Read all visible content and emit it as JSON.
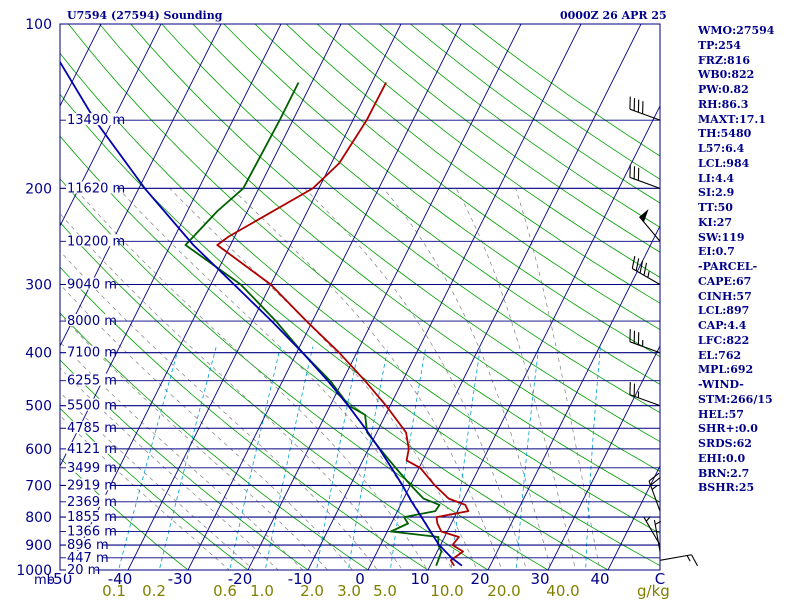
{
  "header": {
    "title": "U7594 (27594) Sounding",
    "time": "0000Z 26 APR 25"
  },
  "stats": [
    "WMO:27594",
    "TP:254",
    "FRZ:816",
    "WB0:822",
    "PW:0.82",
    "RH:86.3",
    "MAXT:17.1",
    "TH:5480",
    "L57:6.4",
    "LCL:984",
    "LI:4.4",
    "SI:2.9",
    "TT:50",
    "KI:27",
    "SW:119",
    "EI:0.7",
    "-PARCEL-",
    "CAPE:67",
    "CINH:57",
    "LCL:897",
    "CAP:4.4",
    "LFC:822",
    "EL:762",
    "MPL:692",
    "-WIND-",
    "STM:266/15",
    "HEL:57",
    "SHR+:0.0",
    "SRDS:62",
    "EHI:0.0",
    "BRN:2.7",
    "BSHR:25"
  ],
  "chart_data": {
    "type": "line",
    "diagram": "skew-T log-P",
    "xlabel": "",
    "ylabel": "mb",
    "pressure_range": [
      1000,
      100
    ],
    "temperature_range": [
      -50,
      50
    ],
    "pressure_ticks": [
      "100",
      "200",
      "300",
      "400",
      "500",
      "600",
      "700",
      "800",
      "900",
      "1000"
    ],
    "pressure_tick_values": [
      100,
      200,
      300,
      400,
      500,
      600,
      700,
      800,
      900,
      1000
    ],
    "temperature_ticks": [
      "-50",
      "-40",
      "-30",
      "-20",
      "-10",
      "0",
      "10",
      "20",
      "30",
      "40",
      "C"
    ],
    "temperature_tick_values": [
      -50,
      -40,
      -30,
      -20,
      -10,
      0,
      10,
      20,
      30,
      40
    ],
    "mixing_ratio_labels": [
      "0.1",
      "0.2",
      "0.6",
      "1.0",
      "2.0",
      "3.0",
      "5.0",
      "10.0",
      "20.0",
      "40.0",
      "g/kg"
    ],
    "mixing_ratio_values": [
      0.1,
      0.2,
      0.6,
      1.0,
      2.0,
      3.0,
      5.0,
      10.0,
      20.0,
      40.0
    ],
    "height_labels": [
      {
        "p": 150,
        "text": "13490 m"
      },
      {
        "p": 200,
        "text": "11620 m"
      },
      {
        "p": 250,
        "text": "10200 m"
      },
      {
        "p": 300,
        "text": "9040 m"
      },
      {
        "p": 350,
        "text": "8000 m"
      },
      {
        "p": 400,
        "text": "7100 m"
      },
      {
        "p": 450,
        "text": "6255 m"
      },
      {
        "p": 500,
        "text": "5500 m"
      },
      {
        "p": 550,
        "text": "4785 m"
      },
      {
        "p": 600,
        "text": "4121 m"
      },
      {
        "p": 650,
        "text": "3499 m"
      },
      {
        "p": 700,
        "text": "2919 m"
      },
      {
        "p": 750,
        "text": "2369 m"
      },
      {
        "p": 800,
        "text": "1855 m"
      },
      {
        "p": 850,
        "text": "1366 m"
      },
      {
        "p": 900,
        "text": "896 m"
      },
      {
        "p": 950,
        "text": "447 m"
      },
      {
        "p": 1000,
        "text": "20 m"
      }
    ],
    "series": [
      {
        "key": "temperature",
        "color": "#b00000",
        "points": [
          {
            "p": 982,
            "t": 14
          },
          {
            "p": 960,
            "t": 13
          },
          {
            "p": 925,
            "t": 14.3
          },
          {
            "p": 900,
            "t": 12
          },
          {
            "p": 870,
            "t": 12.4
          },
          {
            "p": 850,
            "t": 9
          },
          {
            "p": 822,
            "t": 7.7
          },
          {
            "p": 800,
            "t": 7
          },
          {
            "p": 780,
            "t": 11.8
          },
          {
            "p": 760,
            "t": 10.8
          },
          {
            "p": 740,
            "t": 7.5
          },
          {
            "p": 700,
            "t": 4.1
          },
          {
            "p": 650,
            "t": 0.2
          },
          {
            "p": 630,
            "t": -2.7
          },
          {
            "p": 600,
            "t": -3.3
          },
          {
            "p": 560,
            "t": -5.1
          },
          {
            "p": 500,
            "t": -10.7
          },
          {
            "p": 450,
            "t": -16.3
          },
          {
            "p": 400,
            "t": -22.9
          },
          {
            "p": 350,
            "t": -31
          },
          {
            "p": 300,
            "t": -40
          },
          {
            "p": 254,
            "t": -52.2
          },
          {
            "p": 245,
            "t": -51
          },
          {
            "p": 200,
            "t": -41
          },
          {
            "p": 180,
            "t": -38.7
          },
          {
            "p": 150,
            "t": -37.7
          },
          {
            "p": 128,
            "t": -37.6
          }
        ]
      },
      {
        "key": "dewpoint",
        "color": "#006000",
        "points": [
          {
            "p": 982,
            "t": 11
          },
          {
            "p": 960,
            "t": 10.9
          },
          {
            "p": 925,
            "t": 10.7
          },
          {
            "p": 900,
            "t": 9.6
          },
          {
            "p": 870,
            "t": 9
          },
          {
            "p": 850,
            "t": 0.6
          },
          {
            "p": 822,
            "t": 2.8
          },
          {
            "p": 800,
            "t": 1.6
          },
          {
            "p": 780,
            "t": 6.3
          },
          {
            "p": 760,
            "t": 6.5
          },
          {
            "p": 740,
            "t": 3.3
          },
          {
            "p": 700,
            "t": 0.1
          },
          {
            "p": 650,
            "t": -3.9
          },
          {
            "p": 600,
            "t": -8.1
          },
          {
            "p": 560,
            "t": -11.6
          },
          {
            "p": 520,
            "t": -13.4
          },
          {
            "p": 500,
            "t": -16.9
          },
          {
            "p": 450,
            "t": -22.1
          },
          {
            "p": 400,
            "t": -29
          },
          {
            "p": 350,
            "t": -36.1
          },
          {
            "p": 300,
            "t": -45
          },
          {
            "p": 254,
            "t": -57.5
          },
          {
            "p": 220,
            "t": -55
          },
          {
            "p": 200,
            "t": -52.6
          },
          {
            "p": 150,
            "t": -52.2
          },
          {
            "p": 128,
            "t": -52.2
          }
        ]
      },
      {
        "key": "parcel",
        "color": "#0000b0",
        "points": [
          {
            "p": 982,
            "t": 15.3
          },
          {
            "p": 950,
            "t": 12.9
          },
          {
            "p": 897,
            "t": 9.6
          },
          {
            "p": 850,
            "t": 7.2
          },
          {
            "p": 800,
            "t": 4.5
          },
          {
            "p": 750,
            "t": 1.6
          },
          {
            "p": 700,
            "t": -1.3
          },
          {
            "p": 650,
            "t": -4.6
          },
          {
            "p": 600,
            "t": -8.2
          },
          {
            "p": 550,
            "t": -12.3
          },
          {
            "p": 500,
            "t": -17
          },
          {
            "p": 450,
            "t": -22.5
          },
          {
            "p": 400,
            "t": -29
          },
          {
            "p": 350,
            "t": -36.8
          },
          {
            "p": 300,
            "t": -46.1
          },
          {
            "p": 254,
            "t": -56.2
          },
          {
            "p": 200,
            "t": -69
          },
          {
            "p": 150,
            "t": -83
          },
          {
            "p": 110,
            "t": -96.5
          }
        ]
      }
    ],
    "wind_barbs": [
      {
        "p": 960,
        "dir": 80,
        "spd": 15
      },
      {
        "p": 925,
        "dir": 350,
        "spd": 5
      },
      {
        "p": 900,
        "dir": 330,
        "spd": 5
      },
      {
        "p": 780,
        "dir": 340,
        "spd": 25
      },
      {
        "p": 500,
        "dir": 290,
        "spd": 25
      },
      {
        "p": 400,
        "dir": 290,
        "spd": 35
      },
      {
        "p": 300,
        "dir": 300,
        "spd": 45
      },
      {
        "p": 250,
        "dir": 320,
        "spd": 50
      },
      {
        "p": 200,
        "dir": 290,
        "spd": 30
      },
      {
        "p": 150,
        "dir": 290,
        "spd": 40
      }
    ],
    "colors": {
      "isobar": "#000080",
      "isotherm": "#000080",
      "dry_adiabat": "#00a000",
      "moist_adiabat": "#808080",
      "mixing_ratio": "#00a0d0",
      "text": "#00008b",
      "mixing_ratio_text": "#808000",
      "barb": "#000000"
    }
  }
}
